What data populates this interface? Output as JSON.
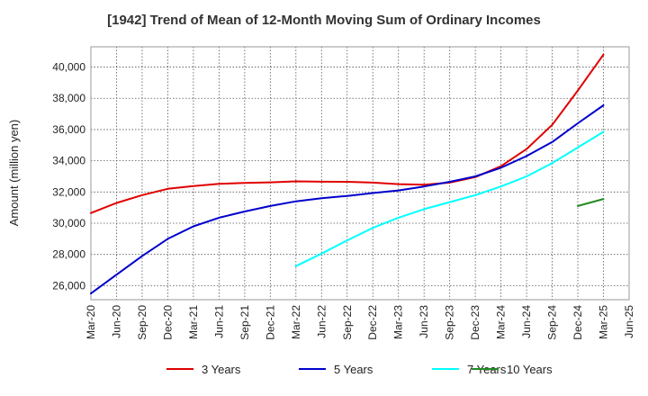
{
  "chart_data": {
    "type": "line",
    "title": "[1942]  Trend of Mean of 12-Month Moving Sum of Ordinary Incomes",
    "xlabel": "",
    "ylabel": "Amount (million yen)",
    "x_ticks": [
      "Mar-20",
      "Jun-20",
      "Sep-20",
      "Dec-20",
      "Mar-21",
      "Jun-21",
      "Sep-21",
      "Dec-21",
      "Mar-22",
      "Jun-22",
      "Sep-22",
      "Dec-22",
      "Mar-23",
      "Jun-23",
      "Sep-23",
      "Dec-23",
      "Mar-24",
      "Jun-24",
      "Sep-24",
      "Dec-24",
      "Mar-25",
      "Jun-25"
    ],
    "y_ticks": [
      26000,
      28000,
      30000,
      32000,
      34000,
      36000,
      38000,
      40000
    ],
    "y_tick_labels": [
      "26,000",
      "28,000",
      "30,000",
      "32,000",
      "34,000",
      "36,000",
      "38,000",
      "40,000"
    ],
    "ylim": [
      25100,
      41300
    ],
    "grid": true,
    "legend_position": "bottom",
    "series": [
      {
        "name": "3 Years",
        "color": "#e00000",
        "points": [
          [
            "Mar-20",
            30650
          ],
          [
            "Jun-20",
            31300
          ],
          [
            "Sep-20",
            31800
          ],
          [
            "Dec-20",
            32200
          ],
          [
            "Mar-21",
            32380
          ],
          [
            "Jun-21",
            32520
          ],
          [
            "Sep-21",
            32580
          ],
          [
            "Dec-21",
            32620
          ],
          [
            "Mar-22",
            32680
          ],
          [
            "Jun-22",
            32660
          ],
          [
            "Sep-22",
            32650
          ],
          [
            "Dec-22",
            32600
          ],
          [
            "Mar-23",
            32500
          ],
          [
            "Jun-23",
            32460
          ],
          [
            "Sep-23",
            32600
          ],
          [
            "Dec-23",
            32950
          ],
          [
            "Mar-24",
            33650
          ],
          [
            "Jun-24",
            34750
          ],
          [
            "Sep-24",
            36300
          ],
          [
            "Dec-24",
            38500
          ],
          [
            "Mar-25",
            40800
          ]
        ]
      },
      {
        "name": "5 Years",
        "color": "#0000cc",
        "points": [
          [
            "Mar-20",
            25500
          ],
          [
            "Jun-20",
            26700
          ],
          [
            "Sep-20",
            27900
          ],
          [
            "Dec-20",
            29000
          ],
          [
            "Mar-21",
            29800
          ],
          [
            "Jun-21",
            30350
          ],
          [
            "Sep-21",
            30750
          ],
          [
            "Dec-21",
            31100
          ],
          [
            "Mar-22",
            31400
          ],
          [
            "Jun-22",
            31600
          ],
          [
            "Sep-22",
            31750
          ],
          [
            "Dec-22",
            31930
          ],
          [
            "Mar-23",
            32100
          ],
          [
            "Jun-23",
            32350
          ],
          [
            "Sep-23",
            32650
          ],
          [
            "Dec-23",
            33000
          ],
          [
            "Mar-24",
            33550
          ],
          [
            "Jun-24",
            34300
          ],
          [
            "Sep-24",
            35200
          ],
          [
            "Dec-24",
            36400
          ],
          [
            "Mar-25",
            37550
          ]
        ]
      },
      {
        "name": "7 Years",
        "color": "#00ffff",
        "points": [
          [
            "Mar-22",
            27250
          ],
          [
            "Jun-22",
            28050
          ],
          [
            "Sep-22",
            28900
          ],
          [
            "Dec-22",
            29700
          ],
          [
            "Mar-23",
            30350
          ],
          [
            "Jun-23",
            30900
          ],
          [
            "Sep-23",
            31350
          ],
          [
            "Dec-23",
            31800
          ],
          [
            "Mar-24",
            32350
          ],
          [
            "Jun-24",
            33000
          ],
          [
            "Sep-24",
            33850
          ],
          [
            "Dec-24",
            34850
          ],
          [
            "Mar-25",
            35850
          ]
        ]
      },
      {
        "name": "10 Years",
        "color": "#228b22",
        "points": [
          [
            "Dec-24",
            31100
          ],
          [
            "Mar-25",
            31550
          ]
        ]
      }
    ]
  }
}
